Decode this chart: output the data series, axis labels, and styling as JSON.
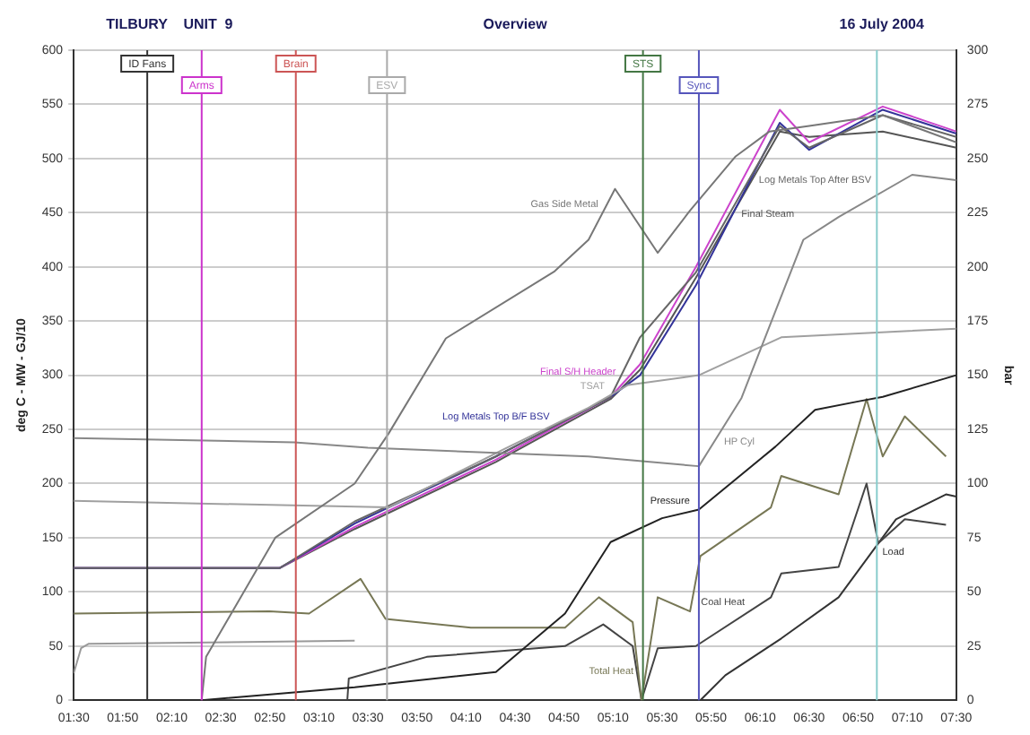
{
  "chart_data": {
    "type": "line",
    "title": "Overview",
    "ylabel": "deg C - MW - GJ/10",
    "y2label": "bar",
    "xlim": [
      1.5,
      7.5
    ],
    "xticks": [
      {
        "value": 1.5,
        "label": "01:30"
      },
      {
        "value": 1.8333,
        "label": "01:50"
      },
      {
        "value": 2.1667,
        "label": "02:10"
      },
      {
        "value": 2.5,
        "label": "02:30"
      },
      {
        "value": 2.8333,
        "label": "02:50"
      },
      {
        "value": 3.1667,
        "label": "03:10"
      },
      {
        "value": 3.5,
        "label": "03:30"
      },
      {
        "value": 3.8333,
        "label": "03:50"
      },
      {
        "value": 4.1667,
        "label": "04:10"
      },
      {
        "value": 4.5,
        "label": "04:30"
      },
      {
        "value": 4.8333,
        "label": "04:50"
      },
      {
        "value": 5.1667,
        "label": "05:10"
      },
      {
        "value": 5.5,
        "label": "05:30"
      },
      {
        "value": 5.8333,
        "label": "05:50"
      },
      {
        "value": 6.1667,
        "label": "06:10"
      },
      {
        "value": 6.5,
        "label": "06:30"
      },
      {
        "value": 6.8333,
        "label": "06:50"
      },
      {
        "value": 7.1667,
        "label": "07:10"
      },
      {
        "value": 7.5,
        "label": "07:30"
      }
    ],
    "ylim": [
      0,
      600
    ],
    "yticks": [
      0,
      50,
      100,
      150,
      200,
      250,
      300,
      350,
      400,
      450,
      500,
      550,
      600
    ],
    "y2lim": [
      0,
      300
    ],
    "y2ticks": [
      0,
      25,
      50,
      75,
      100,
      125,
      150,
      175,
      200,
      225,
      250,
      275,
      300
    ],
    "grid": "y",
    "series": [
      {
        "name": "Gas Side Metal",
        "color": "#777777",
        "x": [
          2.37,
          2.4,
          2.87,
          3.41,
          3.64,
          4.03,
          4.77,
          5.0,
          5.18,
          5.47,
          5.69,
          6.0,
          6.23,
          6.5,
          7.0,
          7.5
        ],
        "values": [
          0,
          40,
          150,
          200,
          246,
          334,
          396,
          425,
          472,
          413,
          452,
          502,
          525,
          530,
          540,
          515
        ]
      },
      {
        "name": "HP Cyl",
        "color": "#888888",
        "x": [
          1.5,
          3.0,
          3.5,
          5.0,
          5.75,
          6.04,
          6.46,
          6.7,
          7.2,
          7.5
        ],
        "values": [
          242,
          238,
          233,
          225,
          216,
          279,
          425,
          446,
          485,
          480
        ]
      },
      {
        "name": "TSAT",
        "color": "#a0a0a0",
        "x": [
          1.5,
          3.64,
          4.4,
          5.0,
          5.27,
          5.75,
          6.31,
          7.5
        ],
        "values": [
          184,
          178,
          230,
          270,
          291,
          300,
          335,
          343
        ]
      },
      {
        "name": "Log Metals Top After BSV",
        "color": "#666666",
        "x": [
          1.5,
          2.9,
          3.41,
          4.37,
          5.15,
          5.35,
          5.73,
          6.3,
          6.5,
          7.0,
          7.5
        ],
        "values": [
          122,
          122,
          165,
          225,
          280,
          335,
          395,
          530,
          510,
          540,
          520
        ]
      },
      {
        "name": "Log Metals Top B/F BSV",
        "color": "#333399",
        "x": [
          1.5,
          2.9,
          3.41,
          4.37,
          5.15,
          5.35,
          5.73,
          6.3,
          6.5,
          7.0,
          7.5
        ],
        "values": [
          122,
          122,
          163,
          225,
          280,
          300,
          383,
          533,
          508,
          545,
          523
        ]
      },
      {
        "name": "Final S/H Header",
        "color": "#cc44cc",
        "x": [
          1.5,
          2.9,
          3.41,
          4.37,
          5.15,
          5.35,
          5.73,
          6.3,
          6.5,
          7.0,
          7.5
        ],
        "values": [
          122,
          122,
          160,
          222,
          280,
          310,
          400,
          545,
          515,
          548,
          525
        ]
      },
      {
        "name": "Final Steam",
        "color": "#555555",
        "x": [
          1.5,
          2.9,
          3.41,
          4.37,
          5.15,
          5.35,
          5.73,
          6.3,
          6.5,
          7.0,
          7.5
        ],
        "values": [
          122,
          122,
          158,
          220,
          278,
          305,
          390,
          525,
          520,
          525,
          510
        ]
      },
      {
        "name": "Pressure",
        "color": "#222222",
        "axis": "y2",
        "x": [
          1.5,
          2.37,
          3.41,
          4.37,
          4.84,
          5.15,
          5.5,
          5.75,
          6.27,
          6.54,
          6.84,
          7.0,
          7.5
        ],
        "values": [
          0,
          0,
          6,
          13,
          40,
          73,
          84,
          88,
          117,
          134,
          138,
          140,
          150
        ]
      },
      {
        "name": "Total Heat",
        "color": "#777755",
        "x": [
          1.5,
          2.83,
          3.1,
          3.45,
          3.62,
          4.2,
          4.84,
          5.07,
          5.3,
          5.36,
          5.47,
          5.69,
          5.76,
          6.24,
          6.31,
          6.7,
          6.89,
          7.0,
          7.15,
          7.43
        ],
        "values": [
          80,
          82,
          80,
          112,
          75,
          67,
          67,
          95,
          72,
          0,
          95,
          82,
          133,
          178,
          207,
          190,
          278,
          225,
          262,
          225
        ]
      },
      {
        "name": "Coal Heat",
        "color": "#444444",
        "x": [
          1.5,
          3.36,
          3.37,
          3.9,
          4.84,
          5.1,
          5.3,
          5.36,
          5.47,
          5.73,
          6.24,
          6.31,
          6.7,
          6.89,
          6.97,
          7.15,
          7.43
        ],
        "values": [
          0,
          0,
          20,
          40,
          50,
          70,
          50,
          0,
          48,
          50,
          95,
          117,
          123,
          200,
          145,
          167,
          162
        ]
      },
      {
        "name": "Load",
        "color": "#333333",
        "x": [
          5.76,
          5.93,
          6.31,
          6.7,
          7.09,
          7.43,
          7.5
        ],
        "values": [
          0,
          23,
          57,
          95,
          167,
          190,
          188
        ]
      },
      {
        "color": "#999999",
        "x": [
          1.5,
          1.55,
          1.6,
          3.41
        ],
        "values": [
          25,
          48,
          52,
          55
        ]
      }
    ],
    "ref_lines": [
      {
        "axis": "x",
        "value": 2.0,
        "label": "ID Fans",
        "color": "#333333"
      },
      {
        "axis": "x",
        "value": 2.37,
        "label": "Arms",
        "color": "#cc33cc"
      },
      {
        "axis": "x",
        "value": 3.01,
        "label": "Brain",
        "color": "#cc5555"
      },
      {
        "axis": "x",
        "value": 3.63,
        "label": "ESV",
        "color": "#aaaaaa"
      },
      {
        "axis": "x",
        "value": 5.37,
        "label": "STS",
        "color": "#447744"
      },
      {
        "axis": "x",
        "value": 5.75,
        "label": "Sync",
        "color": "#5555bb"
      },
      {
        "axis": "x",
        "value": 6.96,
        "color": "#88cccc"
      }
    ],
    "annotations": [
      "TILBURY    UNIT  9",
      "16 July 2004"
    ]
  }
}
